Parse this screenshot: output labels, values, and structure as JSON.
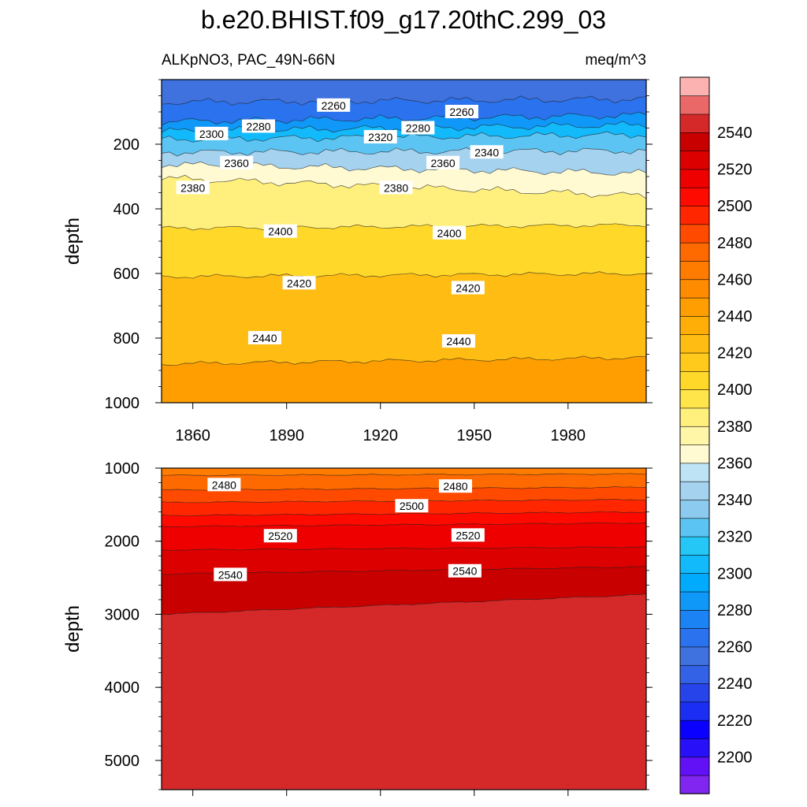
{
  "title": "b.e20.BHIST.f09_g17.20thC.299_03",
  "left_subtitle": "ALKpNO3, PAC_49N-66N",
  "right_subtitle": "meq/m^3",
  "chart_data": [
    {
      "type": "heatmap",
      "panel": "upper",
      "variable": "ALKpNO3",
      "region": "PAC_49N-66N",
      "units": "meq/m^3",
      "ylabel": "depth",
      "xlabel": "",
      "xlim": [
        1850,
        2005
      ],
      "ylim": [
        1000,
        0
      ],
      "x_ticks": [
        1860,
        1890,
        1920,
        1950,
        1980
      ],
      "y_ticks": [
        200,
        400,
        600,
        800,
        1000
      ],
      "contour_interval": 10,
      "isolines": [
        {
          "level": 2260,
          "depth_start": 70,
          "depth_end": 60
        },
        {
          "level": 2280,
          "depth_start": 130,
          "depth_end": 110
        },
        {
          "level": 2300,
          "depth_start": 160,
          "depth_end": 140
        },
        {
          "level": 2320,
          "depth_start": 185,
          "depth_end": 170
        },
        {
          "level": 2340,
          "depth_start": 225,
          "depth_end": 220
        },
        {
          "level": 2360,
          "depth_start": 262,
          "depth_end": 290
        },
        {
          "level": 2380,
          "depth_start": 305,
          "depth_end": 360
        },
        {
          "level": 2400,
          "depth_start": 460,
          "depth_end": 450
        },
        {
          "level": 2420,
          "depth_start": 610,
          "depth_end": 600
        },
        {
          "level": 2440,
          "depth_start": 880,
          "depth_end": 860
        }
      ],
      "contour_labels": [
        {
          "text": "2260",
          "x": 1905,
          "depth": 80
        },
        {
          "text": "2260",
          "x": 1946,
          "depth": 100
        },
        {
          "text": "2280",
          "x": 1881,
          "depth": 145
        },
        {
          "text": "2280",
          "x": 1932,
          "depth": 150
        },
        {
          "text": "2300",
          "x": 1866,
          "depth": 168
        },
        {
          "text": "2320",
          "x": 1920,
          "depth": 178
        },
        {
          "text": "2340",
          "x": 1954,
          "depth": 225
        },
        {
          "text": "2360",
          "x": 1874,
          "depth": 258
        },
        {
          "text": "2360",
          "x": 1940,
          "depth": 258
        },
        {
          "text": "2380",
          "x": 1860,
          "depth": 335
        },
        {
          "text": "2380",
          "x": 1925,
          "depth": 335
        },
        {
          "text": "2400",
          "x": 1888,
          "depth": 470
        },
        {
          "text": "2400",
          "x": 1942,
          "depth": 475
        },
        {
          "text": "2420",
          "x": 1894,
          "depth": 630
        },
        {
          "text": "2420",
          "x": 1948,
          "depth": 645
        },
        {
          "text": "2440",
          "x": 1883,
          "depth": 800
        },
        {
          "text": "2440",
          "x": 1945,
          "depth": 810
        }
      ]
    },
    {
      "type": "heatmap",
      "panel": "lower",
      "variable": "ALKpNO3",
      "region": "PAC_49N-66N",
      "units": "meq/m^3",
      "ylabel": "depth",
      "xlabel": "",
      "xlim": [
        1850,
        2005
      ],
      "ylim": [
        1000,
        5400
      ],
      "y_ticks": [
        1000,
        2000,
        3000,
        4000,
        5000
      ],
      "contour_interval": 10,
      "isolines": [
        {
          "level": 2470,
          "depth_start": 1100,
          "depth_end": 1080
        },
        {
          "level": 2480,
          "depth_start": 1300,
          "depth_end": 1260
        },
        {
          "level": 2490,
          "depth_start": 1470,
          "depth_end": 1430
        },
        {
          "level": 2500,
          "depth_start": 1650,
          "depth_end": 1600
        },
        {
          "level": 2510,
          "depth_start": 1800,
          "depth_end": 1750
        },
        {
          "level": 2520,
          "depth_start": 2120,
          "depth_end": 2080
        },
        {
          "level": 2530,
          "depth_start": 2450,
          "depth_end": 2350
        },
        {
          "level": 2540,
          "depth_start": 3000,
          "depth_end": 2730
        }
      ],
      "contour_labels": [
        {
          "text": "2480",
          "x": 1870,
          "depth": 1230
        },
        {
          "text": "2480",
          "x": 1944,
          "depth": 1250
        },
        {
          "text": "2500",
          "x": 1930,
          "depth": 1520
        },
        {
          "text": "2520",
          "x": 1888,
          "depth": 1930
        },
        {
          "text": "2520",
          "x": 1948,
          "depth": 1920
        },
        {
          "text": "2540",
          "x": 1872,
          "depth": 2460
        },
        {
          "text": "2540",
          "x": 1947,
          "depth": 2410
        }
      ]
    }
  ],
  "colorbar": {
    "levels": [
      2190,
      2200,
      2210,
      2220,
      2230,
      2240,
      2250,
      2260,
      2270,
      2280,
      2290,
      2300,
      2310,
      2320,
      2330,
      2340,
      2350,
      2360,
      2370,
      2380,
      2390,
      2400,
      2410,
      2420,
      2430,
      2440,
      2450,
      2460,
      2470,
      2480,
      2490,
      2500,
      2510,
      2520,
      2530,
      2540,
      2550
    ],
    "colors": [
      "#8026f0",
      "#6210f5",
      "#2810f8",
      "#0a00ff",
      "#1b2ef4",
      "#2744ea",
      "#3462e6",
      "#3f72df",
      "#2a72ee",
      "#1b83f4",
      "#0f98f8",
      "#00aafc",
      "#12bafb",
      "#24c7f6",
      "#5cc4f2",
      "#8dcaf0",
      "#a5d2ef",
      "#bde3f4",
      "#fffad2",
      "#fff6a8",
      "#fff07e",
      "#ffe44a",
      "#ffd82a",
      "#ffca1c",
      "#ffbc12",
      "#ffae08",
      "#ff9e00",
      "#ff8c00",
      "#ff7c00",
      "#ff6a00",
      "#ff4a00",
      "#ff2600",
      "#ff0a00",
      "#ee0000",
      "#dd0000",
      "#c80000",
      "#d52828",
      "#eb6868",
      "#fdb2b2"
    ],
    "tick_labels": [
      "2200",
      "2220",
      "2240",
      "2260",
      "2280",
      "2300",
      "2320",
      "2340",
      "2360",
      "2380",
      "2400",
      "2420",
      "2440",
      "2460",
      "2480",
      "2500",
      "2520",
      "2540"
    ]
  }
}
